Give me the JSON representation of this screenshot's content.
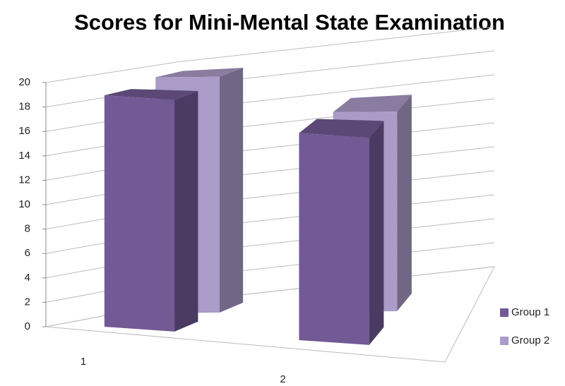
{
  "chart_data": {
    "type": "bar3d",
    "title": "Scores for Mini-Mental State Examination",
    "categories": [
      "1",
      "2"
    ],
    "series": [
      {
        "name": "Group 1",
        "color": "#725a95",
        "values": [
          19,
          17
        ]
      },
      {
        "name": "Group 2",
        "color": "#ab9bc8",
        "values": [
          19.5,
          16.5
        ]
      }
    ],
    "ylim": [
      0,
      20
    ],
    "yticks": [
      0,
      2,
      4,
      6,
      8,
      10,
      12,
      14,
      16,
      18,
      20
    ],
    "grid": true,
    "legend": "right"
  }
}
